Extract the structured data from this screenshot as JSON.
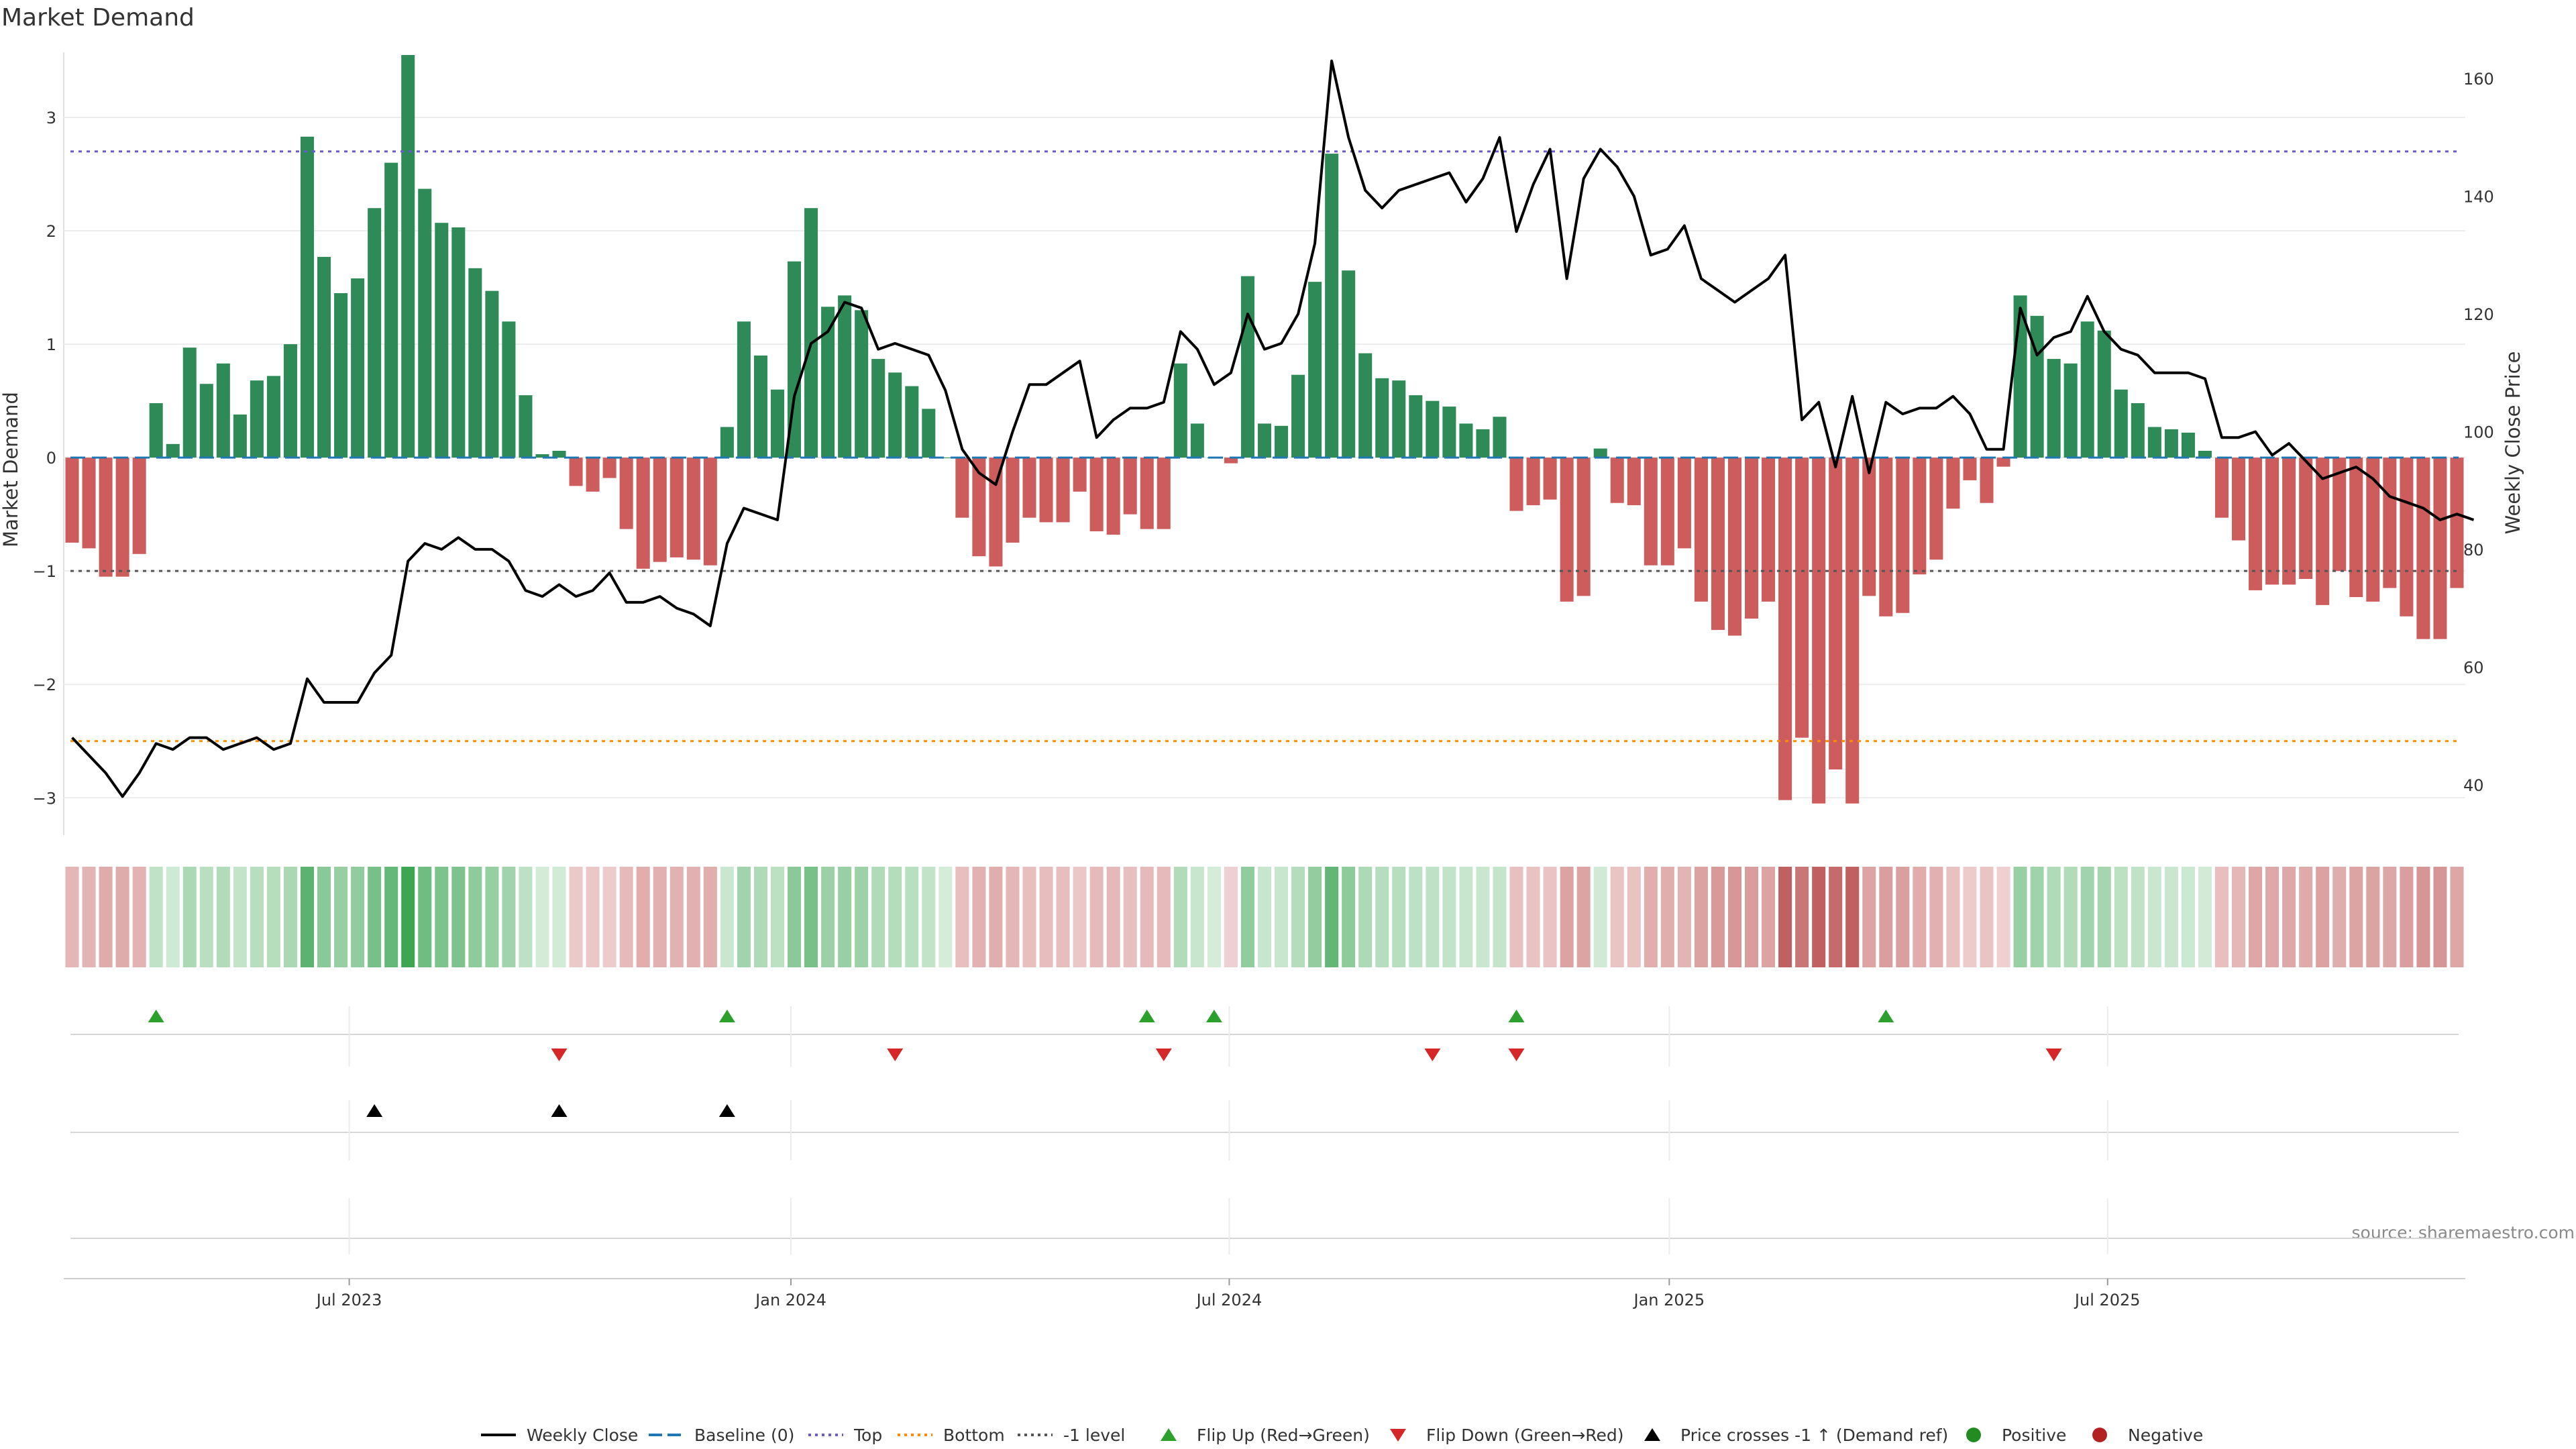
{
  "chart_data": {
    "type": "bar+line",
    "title": "Market Demand",
    "ylabel_left": "Market Demand",
    "ylabel_right": "Weekly Close Price",
    "source": "source: sharemaestro.com",
    "ylim_left": [
      -3.3,
      3.55
    ],
    "ylim_right": [
      32,
      164
    ],
    "yticks_left": [
      "3",
      "2",
      "1",
      "0",
      "−1",
      "−2",
      "−3"
    ],
    "yticks_left_values": [
      3,
      2,
      1,
      0,
      -1,
      -2,
      -3
    ],
    "yticks_right": [
      "160",
      "140",
      "120",
      "100",
      "80",
      "60",
      "40"
    ],
    "yticks_right_values": [
      160,
      140,
      120,
      100,
      80,
      60,
      40
    ],
    "x_tick_labels": [
      "Jul 2023",
      "Jan 2024",
      "Jul 2024",
      "Jan 2025",
      "Jul 2025"
    ],
    "x_tick_weeks": [
      17,
      43.3,
      69.4,
      95.6,
      121.7
    ],
    "reference_lines": {
      "top": 2.7,
      "bottom": -2.5,
      "minus_one": -1,
      "baseline": 0
    },
    "demand": [
      -0.75,
      -0.8,
      -1.05,
      -1.05,
      -0.85,
      0.48,
      0.12,
      0.97,
      0.65,
      0.83,
      0.38,
      0.68,
      0.72,
      1.0,
      2.83,
      1.77,
      1.45,
      1.58,
      2.2,
      2.6,
      3.55,
      2.37,
      2.07,
      2.03,
      1.67,
      1.47,
      1.2,
      0.55,
      0.03,
      0.06,
      -0.25,
      -0.3,
      -0.18,
      -0.63,
      -0.98,
      -0.92,
      -0.88,
      -0.9,
      -0.95,
      0.27,
      1.2,
      0.9,
      0.6,
      1.73,
      2.2,
      1.33,
      1.43,
      1.3,
      0.87,
      0.75,
      0.63,
      0.43,
      0.0,
      -0.53,
      -0.87,
      -0.96,
      -0.75,
      -0.53,
      -0.57,
      -0.57,
      -0.3,
      -0.65,
      -0.68,
      -0.5,
      -0.63,
      -0.63,
      0.83,
      0.3,
      0.0,
      -0.05,
      1.6,
      0.3,
      0.28,
      0.73,
      1.55,
      2.68,
      1.65,
      0.92,
      0.7,
      0.68,
      0.55,
      0.5,
      0.45,
      0.3,
      0.25,
      0.36,
      -0.47,
      -0.42,
      -0.37,
      -1.27,
      -1.22,
      0.08,
      -0.4,
      -0.42,
      -0.95,
      -0.95,
      -0.8,
      -1.27,
      -1.52,
      -1.57,
      -1.42,
      -1.27,
      -3.02,
      -2.47,
      -3.05,
      -2.75,
      -3.05,
      -1.22,
      -1.4,
      -1.37,
      -1.03,
      -0.9,
      -0.45,
      -0.2,
      -0.4,
      -0.08,
      1.43,
      1.25,
      0.87,
      0.83,
      1.2,
      1.12,
      0.6,
      0.48,
      0.27,
      0.25,
      0.22,
      0.06,
      -0.53,
      -0.73,
      -1.17,
      -1.12,
      -1.12,
      -1.07,
      -1.3,
      -1.0,
      -1.23,
      -1.27,
      -1.15,
      -1.4,
      -1.6,
      -1.6,
      -1.15
    ],
    "weekly_close": [
      48,
      45,
      42,
      38,
      42,
      47,
      46,
      48,
      48,
      46,
      47,
      48,
      46,
      47,
      58,
      54,
      54,
      54,
      59,
      62,
      78,
      81,
      80,
      82,
      80,
      80,
      78,
      73,
      72,
      74,
      72,
      73,
      76,
      71,
      71,
      72,
      70,
      69,
      67,
      81,
      87,
      86,
      85,
      106,
      115,
      117,
      122,
      121,
      114,
      115,
      114,
      113,
      107,
      97,
      93,
      91,
      100,
      108,
      108,
      110,
      112,
      99,
      102,
      104,
      104,
      105,
      117,
      114,
      108,
      110,
      120,
      114,
      115,
      120,
      132,
      163,
      150,
      141,
      138,
      141,
      142,
      143,
      144,
      139,
      143,
      150,
      134,
      142,
      148,
      126,
      143,
      148,
      145,
      140,
      130,
      131,
      135,
      126,
      124,
      122,
      124,
      126,
      130,
      102,
      105,
      94,
      106,
      93,
      105,
      103,
      104,
      104,
      106,
      103,
      97,
      97,
      121,
      113,
      116,
      117,
      123,
      117,
      114,
      113,
      110,
      110,
      110,
      109,
      99,
      99,
      100,
      96,
      98,
      95,
      92,
      93,
      94,
      92,
      89,
      88,
      87,
      85,
      86,
      85
    ],
    "flip_up_weeks": [
      5,
      39,
      64,
      68,
      86,
      108
    ],
    "flip_down_weeks": [
      29,
      49,
      65,
      81,
      86,
      118
    ],
    "price_cross_weeks": [
      18,
      29,
      39
    ],
    "legend": [
      "Weekly Close",
      "Baseline (0)",
      "Top",
      "Bottom",
      "-1 level",
      "Flip Up (Red→Green)",
      "Flip Down (Green→Red)",
      "Price crosses -1 ↑ (Demand ref)",
      "Positive",
      "Negative"
    ],
    "colors": {
      "positive": "#2e8b57",
      "negative": "#cd5c5c",
      "line": "#000000",
      "top": "#6a5acd",
      "bottom": "#ff8c00",
      "minus_one": "#555555",
      "baseline": "#1f77b4",
      "flip_up": "#2ca02c",
      "flip_down": "#d62728",
      "price_cross": "#000000",
      "pos_marker": "#228b22",
      "neg_marker": "#b22222"
    }
  }
}
